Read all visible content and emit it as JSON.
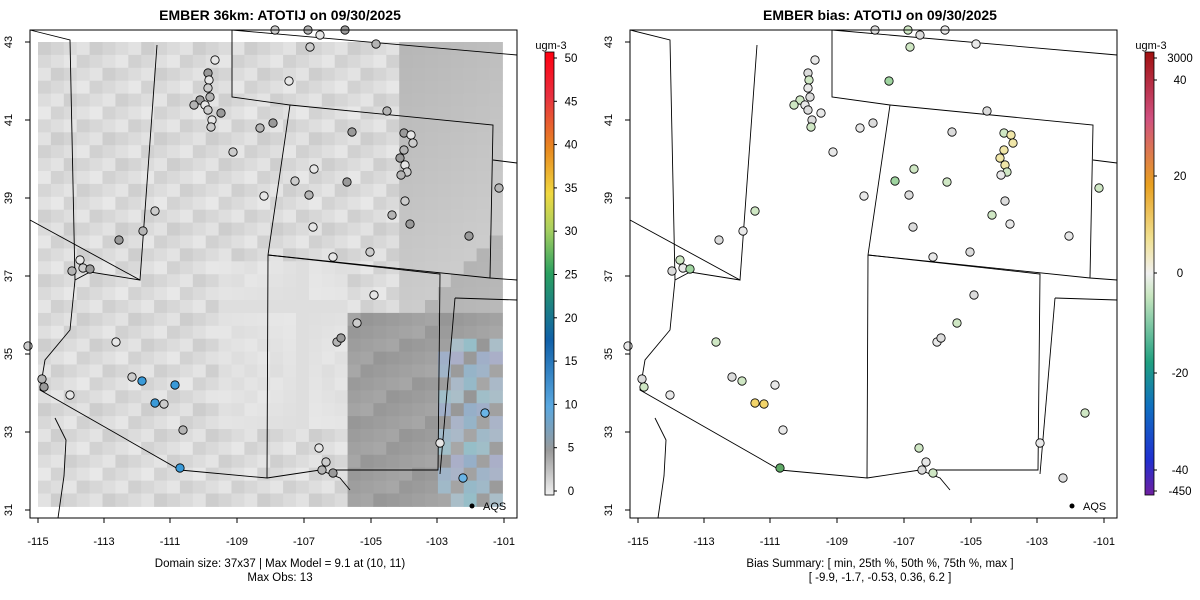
{
  "left": {
    "title": "EMBER 36km: ATOTIJ on 09/30/2025",
    "legend_title": "ugm-3",
    "legend_ticks": [
      "0",
      "5",
      "10",
      "15",
      "20",
      "25",
      "30",
      "35",
      "40",
      "45",
      "50"
    ],
    "aqs_label": "AQS",
    "caption_line1": "Domain size: 37x37 | Max Model = 9.1 at (10, 11)",
    "caption_line2": "Max Obs: 13"
  },
  "right": {
    "title": "EMBER bias: ATOTIJ on 09/30/2025",
    "legend_title": "ugm-3",
    "legend_ticks": [
      "3000",
      "40",
      "20",
      "0",
      "-20",
      "-40",
      "-450"
    ],
    "aqs_label": "AQS",
    "caption_line1": "Bias Summary: [ min, 25th %, 50th %, 75th %, max ]",
    "caption_line2": "[ -9.9,   -1.7,   -0.53,   0.36,   6.2 ]"
  },
  "axes": {
    "x_ticks": [
      "-115",
      "-113",
      "-111",
      "-109",
      "-107",
      "-105",
      "-103",
      "-101"
    ],
    "y_ticks": [
      "31",
      "33",
      "35",
      "37",
      "39",
      "41",
      "43"
    ]
  },
  "colors": {
    "obs_palette": [
      "#e6e6e6",
      "#cccccc",
      "#b4b4b4",
      "#9a9a9a",
      "#3a9ad8",
      "#6ab4e6"
    ],
    "bias_palette": [
      "#e8e8e8",
      "#dcdcdc",
      "#cfe7c4",
      "#9fd4a0",
      "#f0e6a8",
      "#f2d46a",
      "#5fa866"
    ]
  }
}
